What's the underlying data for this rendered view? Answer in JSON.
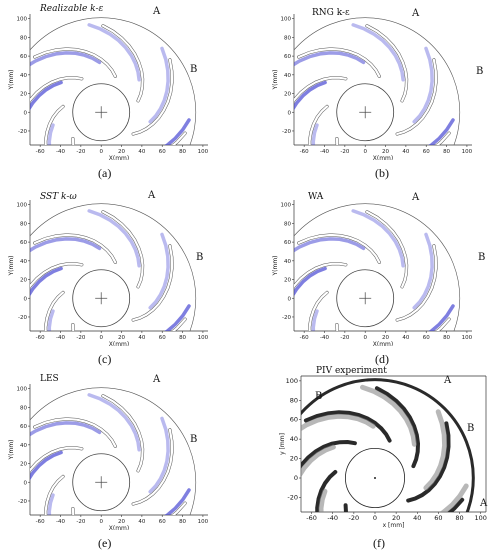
{
  "panels": [
    {
      "title": "Realizable k-ε",
      "caption": "(a)",
      "labelA": "A",
      "labelB": "B",
      "xlabel": "X(mm)",
      "ylabel": "Y(mm)"
    },
    {
      "title": "RNG k-ε",
      "caption": "(b)",
      "labelA": "A",
      "labelB": "B",
      "xlabel": "X(mm)",
      "ylabel": "Y(mm)"
    },
    {
      "title": "SST k-ω",
      "caption": "(c)",
      "labelA": "A",
      "labelB": "B",
      "xlabel": "X(mm)",
      "ylabel": "Y(mm)"
    },
    {
      "title": "WA",
      "caption": "(d)",
      "labelA": "A",
      "labelB": "B",
      "xlabel": "X(mm)",
      "ylabel": "Y(mm)"
    },
    {
      "title": "LES",
      "caption": "(e)",
      "labelA": "A",
      "labelB": "B",
      "xlabel": "X(mm)",
      "ylabel": "Y(mm)"
    },
    {
      "title": "PIV experiment",
      "caption": "(f)",
      "labelA": "A",
      "labelB": "B",
      "xlabel": "x [mm]",
      "ylabel": "y [mm]"
    }
  ],
  "axes": {
    "x_ticks": [
      "-60",
      "-40",
      "-20",
      "0",
      "20",
      "40",
      "60",
      "80",
      "100"
    ],
    "y_ticks": [
      "100",
      "80",
      "60",
      "40",
      "20",
      "0",
      "-20"
    ]
  },
  "colors": {
    "vortex": "#3a3ad0",
    "blade_outline": "#555555",
    "piv_dark": "#2a2a2a"
  }
}
